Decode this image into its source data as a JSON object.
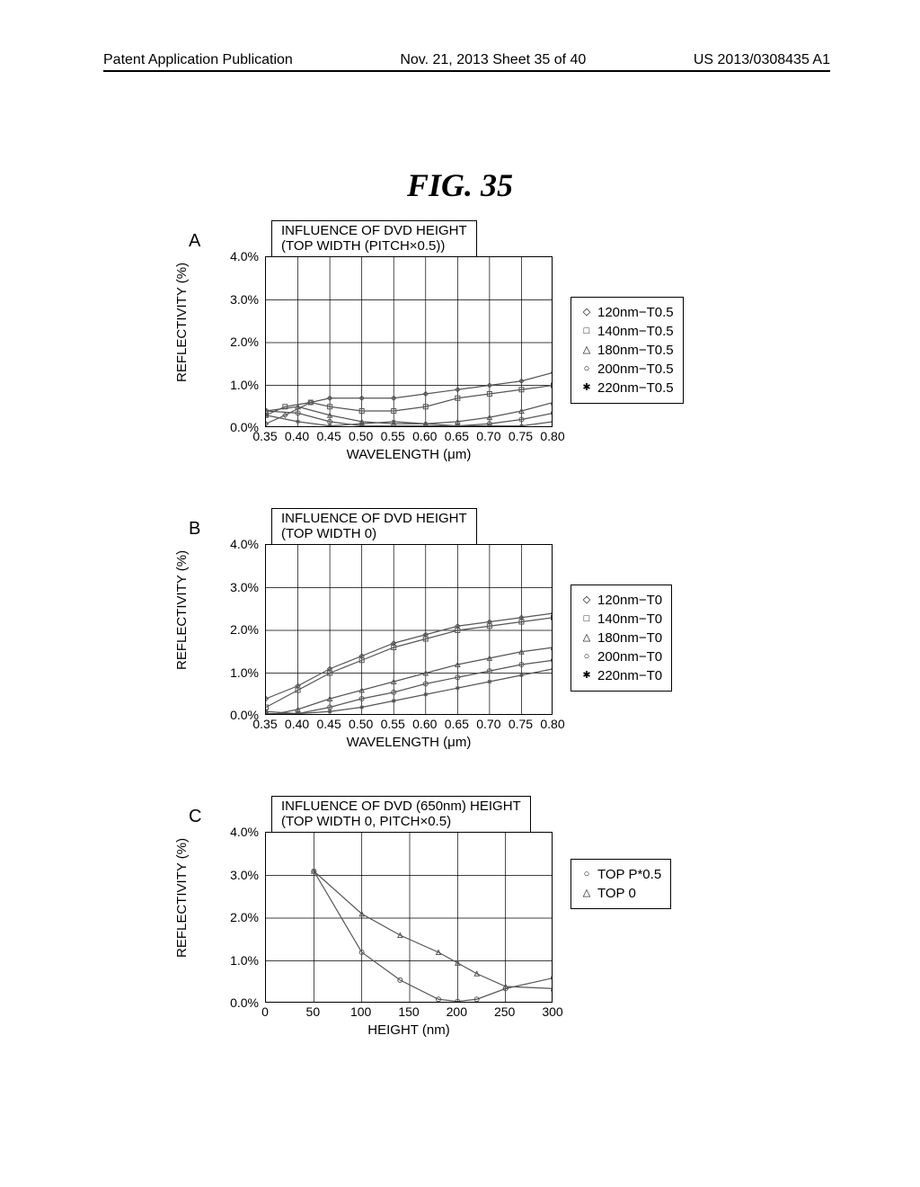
{
  "header": {
    "left": "Patent Application Publication",
    "middle": "Nov. 21, 2013  Sheet 35 of 40",
    "right": "US 2013/0308435 A1"
  },
  "figure_title": "FIG. 35",
  "plot_style": {
    "line_color": "#555555",
    "grid_color": "#000000",
    "plot_widthA": 320,
    "plot_heightA": 190,
    "plot_widthC": 320,
    "plot_heightC": 190
  },
  "chartA": {
    "panel": "A",
    "title": "INFLUENCE OF DVD HEIGHT\n(TOP WIDTH (PITCH×0.5))",
    "ylabel": "REFLECTIVITY (%)",
    "xlabel": "WAVELENGTH (μm)",
    "xmin": 0.35,
    "xmax": 0.8,
    "ymin": 0.0,
    "ymax": 4.0,
    "yticks": [
      "4.0%",
      "3.0%",
      "2.0%",
      "1.0%",
      "0.0%"
    ],
    "xticks": [
      "0.35",
      "0.40",
      "0.45",
      "0.50",
      "0.55",
      "0.60",
      "0.65",
      "0.70",
      "0.75",
      "0.80"
    ],
    "legend": [
      {
        "marker": "◇",
        "label": "120nm−T0.5"
      },
      {
        "marker": "□",
        "label": "140nm−T0.5"
      },
      {
        "marker": "△",
        "label": "180nm−T0.5"
      },
      {
        "marker": "○",
        "label": "200nm−T0.5"
      },
      {
        "marker": "✱",
        "label": "220nm−T0.5"
      }
    ],
    "series": {
      "120": [
        [
          0.35,
          0.1
        ],
        [
          0.38,
          0.3
        ],
        [
          0.42,
          0.6
        ],
        [
          0.45,
          0.7
        ],
        [
          0.5,
          0.7
        ],
        [
          0.55,
          0.7
        ],
        [
          0.6,
          0.8
        ],
        [
          0.65,
          0.9
        ],
        [
          0.7,
          1.0
        ],
        [
          0.75,
          1.1
        ],
        [
          0.8,
          1.3
        ]
      ],
      "140": [
        [
          0.35,
          0.3
        ],
        [
          0.38,
          0.5
        ],
        [
          0.42,
          0.6
        ],
        [
          0.45,
          0.5
        ],
        [
          0.5,
          0.4
        ],
        [
          0.55,
          0.4
        ],
        [
          0.6,
          0.5
        ],
        [
          0.65,
          0.7
        ],
        [
          0.7,
          0.8
        ],
        [
          0.75,
          0.9
        ],
        [
          0.8,
          1.0
        ]
      ],
      "180": [
        [
          0.35,
          0.4
        ],
        [
          0.4,
          0.5
        ],
        [
          0.45,
          0.3
        ],
        [
          0.5,
          0.15
        ],
        [
          0.55,
          0.1
        ],
        [
          0.6,
          0.1
        ],
        [
          0.65,
          0.15
        ],
        [
          0.7,
          0.25
        ],
        [
          0.75,
          0.4
        ],
        [
          0.8,
          0.6
        ]
      ],
      "200": [
        [
          0.35,
          0.4
        ],
        [
          0.4,
          0.35
        ],
        [
          0.45,
          0.15
        ],
        [
          0.5,
          0.05
        ],
        [
          0.55,
          0.05
        ],
        [
          0.6,
          0.05
        ],
        [
          0.65,
          0.05
        ],
        [
          0.7,
          0.1
        ],
        [
          0.75,
          0.2
        ],
        [
          0.8,
          0.35
        ]
      ],
      "220": [
        [
          0.35,
          0.3
        ],
        [
          0.4,
          0.15
        ],
        [
          0.45,
          0.05
        ],
        [
          0.5,
          0.1
        ],
        [
          0.55,
          0.15
        ],
        [
          0.6,
          0.1
        ],
        [
          0.65,
          0.05
        ],
        [
          0.7,
          0.05
        ],
        [
          0.75,
          0.05
        ],
        [
          0.8,
          0.15
        ]
      ]
    }
  },
  "chartB": {
    "panel": "B",
    "title": "INFLUENCE OF DVD HEIGHT\n(TOP WIDTH 0)",
    "ylabel": "REFLECTIVITY (%)",
    "xlabel": "WAVELENGTH (μm)",
    "xmin": 0.35,
    "xmax": 0.8,
    "ymin": 0.0,
    "ymax": 4.0,
    "yticks": [
      "4.0%",
      "3.0%",
      "2.0%",
      "1.0%",
      "0.0%"
    ],
    "xticks": [
      "0.35",
      "0.40",
      "0.45",
      "0.50",
      "0.55",
      "0.60",
      "0.65",
      "0.70",
      "0.75",
      "0.80"
    ],
    "legend": [
      {
        "marker": "◇",
        "label": "120nm−T0"
      },
      {
        "marker": "□",
        "label": "140nm−T0"
      },
      {
        "marker": "△",
        "label": "180nm−T0"
      },
      {
        "marker": "○",
        "label": "200nm−T0"
      },
      {
        "marker": "✱",
        "label": "220nm−T0"
      }
    ],
    "series": {
      "120": [
        [
          0.35,
          0.4
        ],
        [
          0.4,
          0.7
        ],
        [
          0.45,
          1.1
        ],
        [
          0.5,
          1.4
        ],
        [
          0.55,
          1.7
        ],
        [
          0.6,
          1.9
        ],
        [
          0.65,
          2.1
        ],
        [
          0.7,
          2.2
        ],
        [
          0.75,
          2.3
        ],
        [
          0.8,
          2.4
        ]
      ],
      "140": [
        [
          0.35,
          0.2
        ],
        [
          0.4,
          0.6
        ],
        [
          0.45,
          1.0
        ],
        [
          0.5,
          1.3
        ],
        [
          0.55,
          1.6
        ],
        [
          0.6,
          1.8
        ],
        [
          0.65,
          2.0
        ],
        [
          0.7,
          2.1
        ],
        [
          0.75,
          2.2
        ],
        [
          0.8,
          2.3
        ]
      ],
      "180": [
        [
          0.35,
          0.0
        ],
        [
          0.4,
          0.15
        ],
        [
          0.45,
          0.4
        ],
        [
          0.5,
          0.6
        ],
        [
          0.55,
          0.8
        ],
        [
          0.6,
          1.0
        ],
        [
          0.65,
          1.2
        ],
        [
          0.7,
          1.35
        ],
        [
          0.75,
          1.5
        ],
        [
          0.8,
          1.6
        ]
      ],
      "200": [
        [
          0.35,
          0.05
        ],
        [
          0.4,
          0.05
        ],
        [
          0.45,
          0.2
        ],
        [
          0.5,
          0.4
        ],
        [
          0.55,
          0.55
        ],
        [
          0.6,
          0.75
        ],
        [
          0.65,
          0.9
        ],
        [
          0.7,
          1.05
        ],
        [
          0.75,
          1.2
        ],
        [
          0.8,
          1.3
        ]
      ],
      "220": [
        [
          0.35,
          0.1
        ],
        [
          0.4,
          0.05
        ],
        [
          0.45,
          0.1
        ],
        [
          0.5,
          0.2
        ],
        [
          0.55,
          0.35
        ],
        [
          0.6,
          0.5
        ],
        [
          0.65,
          0.65
        ],
        [
          0.7,
          0.8
        ],
        [
          0.75,
          0.95
        ],
        [
          0.8,
          1.1
        ]
      ]
    }
  },
  "chartC": {
    "panel": "C",
    "title": "INFLUENCE OF DVD (650nm) HEIGHT\n(TOP WIDTH 0, PITCH×0.5)",
    "ylabel": "REFLECTIVITY (%)",
    "xlabel": "HEIGHT (nm)",
    "xmin": 0,
    "xmax": 300,
    "ymin": 0.0,
    "ymax": 4.0,
    "yticks": [
      "4.0%",
      "3.0%",
      "2.0%",
      "1.0%",
      "0.0%"
    ],
    "xticks": [
      "0",
      "50",
      "100",
      "150",
      "200",
      "250",
      "300"
    ],
    "legend": [
      {
        "marker": "○",
        "label": "TOP P*0.5"
      },
      {
        "marker": "△",
        "label": "TOP 0"
      }
    ],
    "series": {
      "p05": [
        [
          50,
          3.1
        ],
        [
          100,
          1.2
        ],
        [
          140,
          0.55
        ],
        [
          180,
          0.1
        ],
        [
          200,
          0.05
        ],
        [
          220,
          0.1
        ],
        [
          250,
          0.35
        ],
        [
          300,
          0.6
        ]
      ],
      "top0": [
        [
          50,
          3.1
        ],
        [
          100,
          2.1
        ],
        [
          140,
          1.6
        ],
        [
          180,
          1.2
        ],
        [
          200,
          0.95
        ],
        [
          220,
          0.7
        ],
        [
          250,
          0.4
        ],
        [
          300,
          0.35
        ]
      ]
    }
  }
}
